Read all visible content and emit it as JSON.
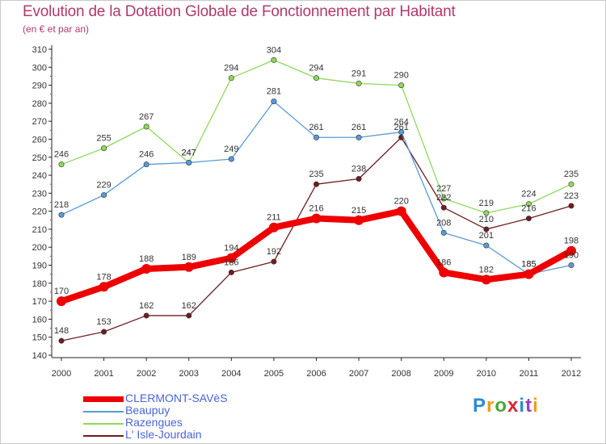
{
  "title": "Evolution de la Dotation Globale de Fonctionnement par Habitant",
  "subtitle": "(en € et par an)",
  "brand": "Proxiti",
  "chart_data": {
    "type": "line",
    "title": "Evolution de la Dotation Globale de Fonctionnement par Habitant",
    "ylabel": "(en € et par an)",
    "xlabel": "",
    "ylim": [
      140,
      310
    ],
    "ytick_step": 10,
    "grid": false,
    "legend_position": "bottom-left",
    "x": [
      2000,
      2001,
      2002,
      2003,
      2004,
      2005,
      2006,
      2007,
      2008,
      2009,
      2010,
      2011,
      2012
    ],
    "series": [
      {
        "name": "L' Isle-Jourdain",
        "color": "#6e1d20",
        "values": [
          148,
          153,
          162,
          162,
          186,
          192,
          235,
          238,
          261,
          222,
          210,
          216,
          223
        ]
      },
      {
        "name": "Razengues",
        "color": "#8fd85a",
        "values": [
          246,
          255,
          267,
          247,
          294,
          304,
          294,
          291,
          290,
          227,
          219,
          224,
          235
        ]
      },
      {
        "name": "Beaupuy",
        "color": "#5a9ad6",
        "values": [
          218,
          229,
          246,
          247,
          249,
          281,
          261,
          261,
          264,
          208,
          201,
          185,
          190
        ]
      },
      {
        "name": "CLERMONT-SAVèS",
        "color": "#ee0000",
        "values": [
          170,
          178,
          188,
          189,
          194,
          211,
          216,
          215,
          220,
          186,
          182,
          185,
          198
        ]
      }
    ]
  }
}
